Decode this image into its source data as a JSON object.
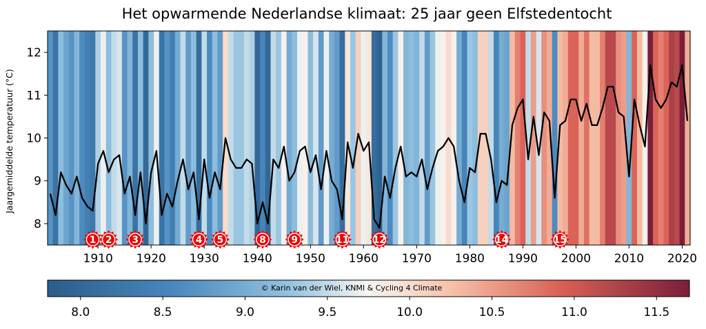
{
  "chart_data": {
    "type": "line",
    "title": "Het opwarmende Nederlandse klimaat: 25 jaar geen Elfstedentocht",
    "ylabel": "Jaargemiddelde temperatuur (°C)",
    "xlabel": "",
    "xlim": [
      1901,
      2021
    ],
    "ylim": [
      7.5,
      12.5
    ],
    "x_ticks": [
      1910,
      1920,
      1930,
      1940,
      1950,
      1960,
      1970,
      1980,
      1990,
      2000,
      2010,
      2020
    ],
    "y_ticks": [
      8,
      9,
      10,
      11,
      12
    ],
    "grid": false,
    "background": "warming stripes colored by yearly temperature",
    "series": [
      {
        "years": [
          1901,
          1902,
          1903,
          1904,
          1905,
          1906,
          1907,
          1908,
          1909,
          1910,
          1911,
          1912,
          1913,
          1914,
          1915,
          1916,
          1917,
          1918,
          1919,
          1920,
          1921,
          1922,
          1923,
          1924,
          1925,
          1926,
          1927,
          1928,
          1929,
          1930,
          1931,
          1932,
          1933,
          1934,
          1935,
          1936,
          1937,
          1938,
          1939,
          1940,
          1941,
          1942,
          1943,
          1944,
          1945,
          1946,
          1947,
          1948,
          1949,
          1950,
          1951,
          1952,
          1953,
          1954,
          1955,
          1956,
          1957,
          1958,
          1959,
          1960,
          1961,
          1962,
          1963,
          1964,
          1965,
          1966,
          1967,
          1968,
          1969,
          1970,
          1971,
          1972,
          1973,
          1974,
          1975,
          1976,
          1977,
          1978,
          1979,
          1980,
          1981,
          1982,
          1983,
          1984,
          1985,
          1986,
          1987,
          1988,
          1989,
          1990,
          1991,
          1992,
          1993,
          1994,
          1995,
          1996,
          1997,
          1998,
          1999,
          2000,
          2001,
          2002,
          2003,
          2004,
          2005,
          2006,
          2007,
          2008,
          2009,
          2010,
          2011,
          2012,
          2013,
          2014,
          2015,
          2016,
          2017,
          2018,
          2019,
          2020,
          2021
        ],
        "values": [
          8.7,
          8.2,
          9.2,
          8.9,
          8.7,
          9.1,
          8.6,
          8.4,
          8.3,
          9.4,
          9.7,
          9.2,
          9.5,
          9.6,
          8.7,
          9.1,
          8.2,
          9.2,
          8.0,
          9.2,
          9.7,
          8.2,
          8.7,
          8.4,
          9.0,
          9.5,
          8.8,
          9.2,
          8.1,
          9.5,
          8.6,
          9.2,
          8.8,
          10.0,
          9.5,
          9.3,
          9.3,
          9.5,
          9.4,
          8.0,
          8.5,
          8.0,
          9.5,
          9.3,
          9.8,
          9.0,
          9.2,
          9.7,
          9.8,
          9.2,
          9.6,
          8.8,
          9.7,
          9.0,
          8.8,
          8.1,
          9.9,
          9.3,
          10.1,
          9.7,
          9.9,
          8.1,
          7.9,
          9.1,
          8.6,
          9.3,
          9.8,
          9.1,
          9.2,
          9.1,
          9.5,
          8.8,
          9.3,
          9.7,
          9.8,
          10.0,
          9.8,
          9.0,
          8.5,
          9.3,
          9.2,
          10.1,
          10.1,
          9.5,
          8.5,
          9.0,
          8.9,
          10.3,
          10.7,
          10.9,
          9.5,
          10.5,
          9.6,
          10.6,
          10.4,
          8.6,
          10.3,
          10.4,
          10.9,
          10.9,
          10.4,
          10.8,
          10.3,
          10.3,
          10.7,
          11.2,
          11.2,
          10.6,
          10.5,
          9.1,
          10.9,
          10.3,
          9.8,
          11.7,
          10.9,
          10.7,
          10.9,
          11.3,
          11.2,
          11.7,
          10.4
        ]
      }
    ],
    "markers": [
      {
        "label": "1",
        "year": 1909
      },
      {
        "label": "2",
        "year": 1912
      },
      {
        "label": "3",
        "year": 1917
      },
      {
        "label": "4",
        "year": 1929
      },
      {
        "label": "5",
        "year": 1933
      },
      {
        "label": "8",
        "year": 1941
      },
      {
        "label": "9",
        "year": 1947
      },
      {
        "label": "11",
        "year": 1956
      },
      {
        "label": "12",
        "year": 1963
      },
      {
        "label": "14",
        "year": 1986
      },
      {
        "label": "15",
        "year": 1997
      }
    ],
    "colorbar": {
      "range": [
        7.8,
        11.7
      ],
      "ticks": [
        "8.0",
        "8.5",
        "9.0",
        "9.5",
        "10.0",
        "10.5",
        "11.0",
        "11.5"
      ],
      "tick_values": [
        8.0,
        8.5,
        9.0,
        9.5,
        10.0,
        10.5,
        11.0,
        11.5
      ],
      "caption": "© Karin van der Wiel, KNMI & Cycling 4 Climate"
    },
    "colors": {
      "line": "#000000",
      "marker": "#ee0000",
      "cold_end": "#2b5c8a",
      "mid": "#f7f5f2",
      "warm_end": "#7a1f3a"
    }
  }
}
